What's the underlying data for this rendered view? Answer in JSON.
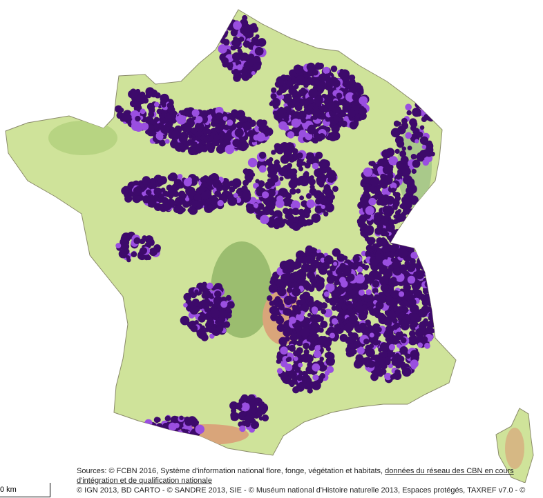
{
  "attribution": {
    "sources": "Sources: © FCBN 2016, Système d'information national flore, fonge, végétation et habitats, ",
    "link": "données du réseau des CBN en cours d'intégration et de qualification nationale",
    "credits": "© IGN 2013, BD CARTO - © SANDRE 2013, SIE - © Muséum national d'Histoire naturelle 2013, Espaces protégés, TAXREF v7.0 - ©"
  },
  "scale": {
    "label": "0 km"
  }
}
